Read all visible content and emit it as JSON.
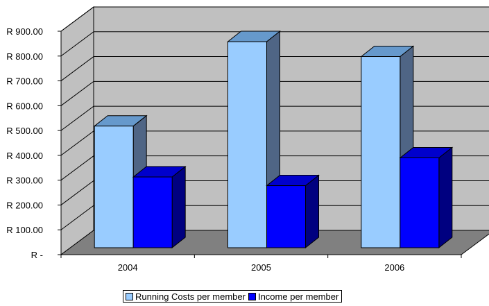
{
  "chart_data": {
    "type": "bar",
    "categories": [
      "2004",
      "2005",
      "2006"
    ],
    "series": [
      {
        "name": "Running Costs per member",
        "values": [
          490,
          830,
          770
        ],
        "color": "#99CCFF"
      },
      {
        "name": "Income per member",
        "values": [
          285,
          250,
          362
        ],
        "color": "#0000FF"
      }
    ],
    "yticks": [
      "R -",
      "R 100.00",
      "R 200.00",
      "R 300.00",
      "R 400.00",
      "R 500.00",
      "R 600.00",
      "R 700.00",
      "R 800.00",
      "R 900.00"
    ],
    "ylim": [
      0,
      900
    ],
    "grid": true,
    "legend": "bottom",
    "colors": {
      "wall": "#C0C0C0",
      "floor": "#808080",
      "side_light": "#4F6585",
      "side_dark": "#000080"
    }
  }
}
